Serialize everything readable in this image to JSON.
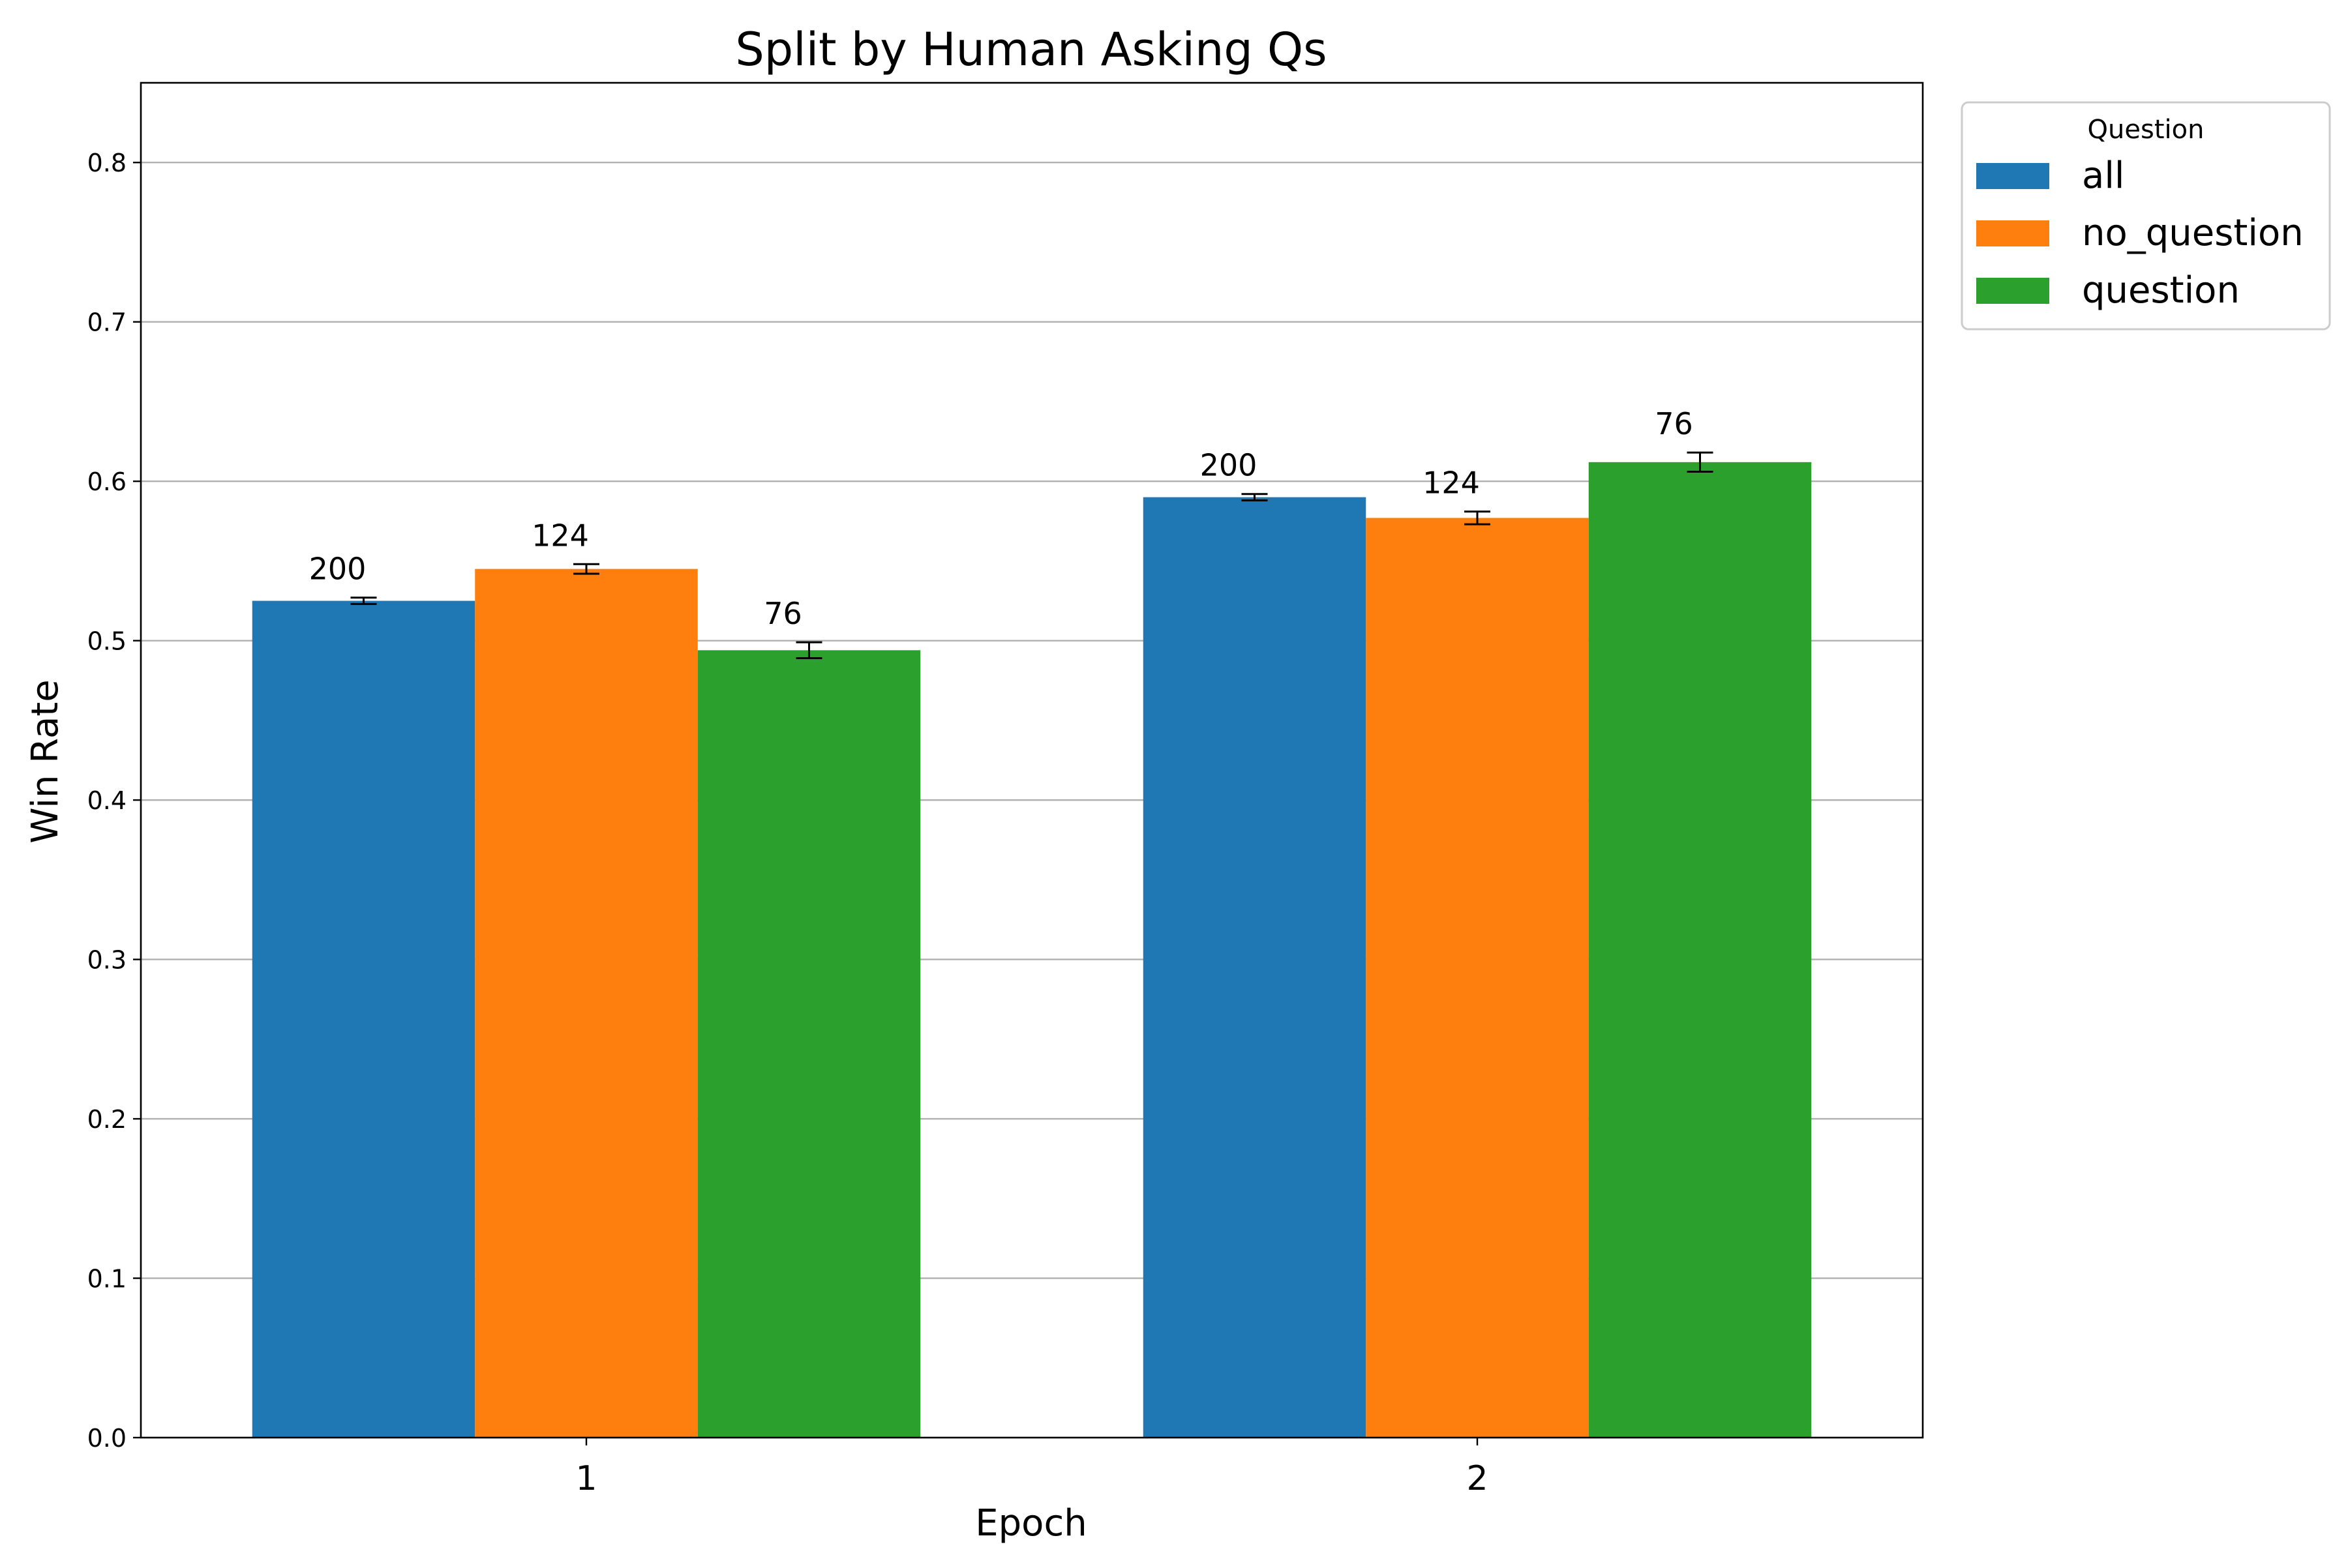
{
  "chart_data": {
    "type": "bar",
    "title": "Split by Human Asking Qs",
    "xlabel": "Epoch",
    "ylabel": "Win Rate",
    "categories": [
      "1",
      "2"
    ],
    "ylim": [
      0,
      0.85
    ],
    "yticks": [
      "0.0",
      "0.1",
      "0.2",
      "0.3",
      "0.4",
      "0.5",
      "0.6",
      "0.7",
      "0.8"
    ],
    "grid": "y",
    "legend": {
      "title": "Question",
      "placement": "outside-top-right"
    },
    "series": [
      {
        "name": "all",
        "color": "#1f77b4",
        "values": [
          0.525,
          0.59
        ],
        "errors": [
          0.002,
          0.002
        ],
        "labels": [
          "200",
          "200"
        ]
      },
      {
        "name": "no_question",
        "color": "#ff7f0e",
        "values": [
          0.545,
          0.577
        ],
        "errors": [
          0.003,
          0.004
        ],
        "labels": [
          "124",
          "124"
        ]
      },
      {
        "name": "question",
        "color": "#2ca02c",
        "values": [
          0.494,
          0.612
        ],
        "errors": [
          0.005,
          0.006
        ],
        "labels": [
          "76",
          "76"
        ]
      }
    ]
  }
}
